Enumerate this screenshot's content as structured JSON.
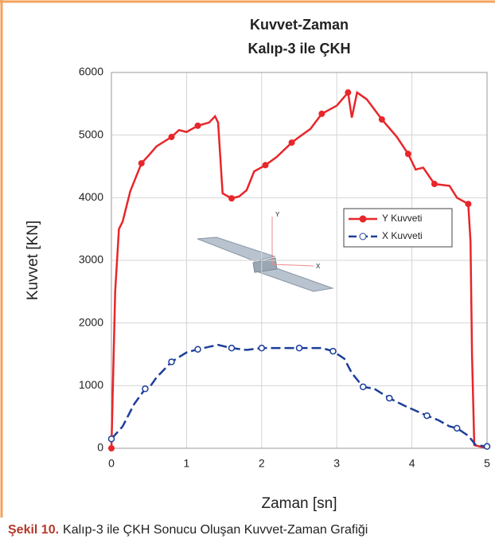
{
  "chart_data": {
    "type": "line",
    "title": "Kuvvet-Zaman",
    "subtitle": "Kalıp-3 ile ÇKH",
    "x_label": "Zaman [sn]",
    "y_label": "Kuvvet [KN]",
    "caption_bold": "Şekil 10.",
    "caption": "Kalıp-3 ile ÇKH Sonucu Oluşan Kuvvet-Zaman Grafiği",
    "inset_labels": [
      "Y",
      "X"
    ],
    "xlim": [
      0,
      5
    ],
    "xticks": [
      0,
      1,
      2,
      3,
      4,
      5
    ],
    "ylim": [
      0,
      6000
    ],
    "yticks": [
      0,
      1000,
      2000,
      3000,
      4000,
      5000,
      6000
    ],
    "grid": true,
    "legend": "right",
    "series": [
      {
        "name": "Y Kuvveti",
        "color": "#e8262a",
        "x": [
          0,
          0.05,
          0.1,
          0.15,
          0.25,
          0.4,
          0.5,
          0.6,
          0.8,
          0.9,
          1.0,
          1.15,
          1.3,
          1.38,
          1.42,
          1.48,
          1.6,
          1.7,
          1.8,
          1.9,
          2.05,
          2.2,
          2.4,
          2.5,
          2.65,
          2.8,
          3.0,
          3.15,
          3.2,
          3.27,
          3.4,
          3.6,
          3.8,
          3.95,
          4.05,
          4.15,
          4.3,
          4.5,
          4.6,
          4.75,
          4.78,
          4.8,
          4.83,
          4.9,
          5
        ],
        "values": [
          0,
          2500,
          3500,
          3620,
          4100,
          4550,
          4680,
          4820,
          4970,
          5080,
          5050,
          5150,
          5200,
          5300,
          5200,
          4070,
          3990,
          4020,
          4120,
          4420,
          4520,
          4650,
          4880,
          4970,
          5100,
          5340,
          5470,
          5680,
          5280,
          5680,
          5570,
          5250,
          4970,
          4700,
          4450,
          4480,
          4220,
          4190,
          4000,
          3900,
          3300,
          1500,
          50,
          30,
          0
        ]
      },
      {
        "name": "X Kuvveti",
        "color": "#1d3f9a",
        "x": [
          0,
          0.15,
          0.3,
          0.45,
          0.5,
          0.6,
          0.8,
          1.0,
          1.15,
          1.3,
          1.42,
          1.6,
          1.8,
          2.0,
          2.2,
          2.5,
          2.8,
          2.95,
          3.1,
          3.2,
          3.35,
          3.5,
          3.7,
          3.9,
          4.2,
          4.35,
          4.5,
          4.6,
          4.75,
          4.85,
          5
        ],
        "values": [
          150,
          350,
          700,
          950,
          960,
          1130,
          1380,
          1530,
          1580,
          1620,
          1650,
          1600,
          1570,
          1600,
          1600,
          1600,
          1600,
          1550,
          1430,
          1200,
          980,
          950,
          800,
          680,
          520,
          450,
          350,
          320,
          200,
          50,
          30
        ]
      }
    ]
  }
}
